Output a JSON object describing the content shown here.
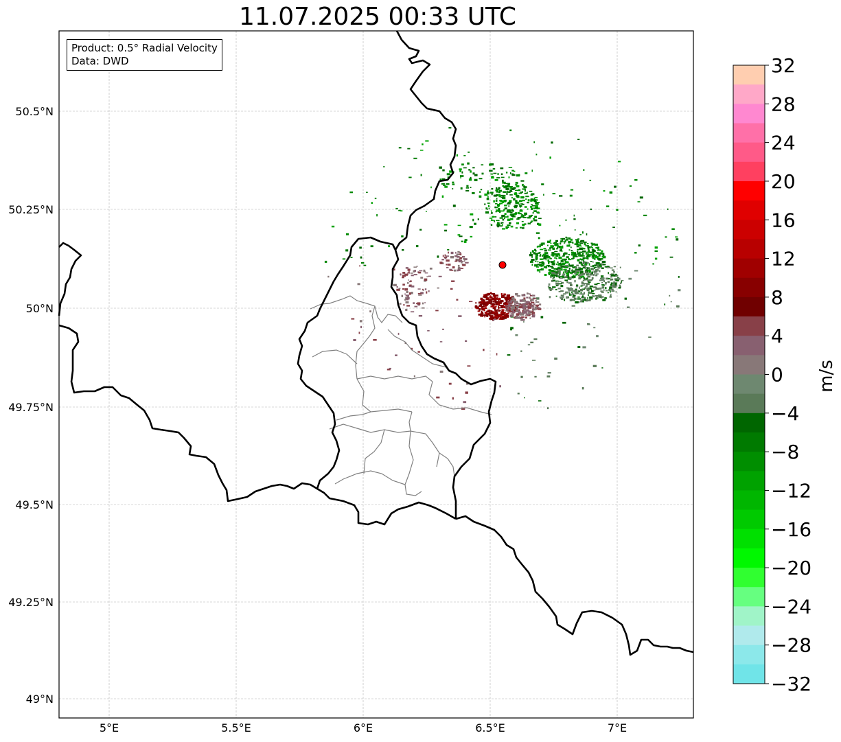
{
  "title": "11.07.2025 00:33 UTC",
  "info_box": {
    "product": "Product: 0.5° Radial Velocity",
    "data": "Data: DWD"
  },
  "lon_labels": [
    "5°E",
    "5.5°E",
    "6°E",
    "6.5°E",
    "7°E"
  ],
  "lat_labels": [
    "50.5°N",
    "50.25°N",
    "50°N",
    "49.75°N",
    "49.5°N",
    "49.25°N",
    "49°N"
  ],
  "colorbar": {
    "label": "m/s",
    "min": -32,
    "max": 32,
    "tick_labels": [
      "32",
      "28",
      "24",
      "20",
      "16",
      "12",
      "8",
      "4",
      "0",
      "−4",
      "−8",
      "−12",
      "−16",
      "−20",
      "−24",
      "−28",
      "−32"
    ],
    "colors_top_to_bottom": [
      "#ffceb0",
      "#ffa8c8",
      "#ff88d0",
      "#ff70a8",
      "#ff5a88",
      "#ff4060",
      "#ff0000",
      "#e00000",
      "#cc0000",
      "#b80000",
      "#a00000",
      "#880000",
      "#700000",
      "#884048",
      "#886070",
      "#887878",
      "#6e8870",
      "#5a7a58",
      "#006600",
      "#007a00",
      "#008e00",
      "#00a200",
      "#00b600",
      "#00ca00",
      "#00e000",
      "#00f800",
      "#30ff30",
      "#66ff80",
      "#a0f4c8",
      "#b0eaec",
      "#8ce8ea",
      "#70e4e8"
    ]
  },
  "radar": {
    "site_marker_color": "#ff0000",
    "site_lon": 6.548,
    "site_lat": 50.111
  },
  "colors": {
    "approach_green": "#008800",
    "recede_red": "#800000",
    "near_zero_grey": "#886070",
    "border": "#000000",
    "admin_border": "#808080",
    "grid": "#b0b0b0"
  }
}
